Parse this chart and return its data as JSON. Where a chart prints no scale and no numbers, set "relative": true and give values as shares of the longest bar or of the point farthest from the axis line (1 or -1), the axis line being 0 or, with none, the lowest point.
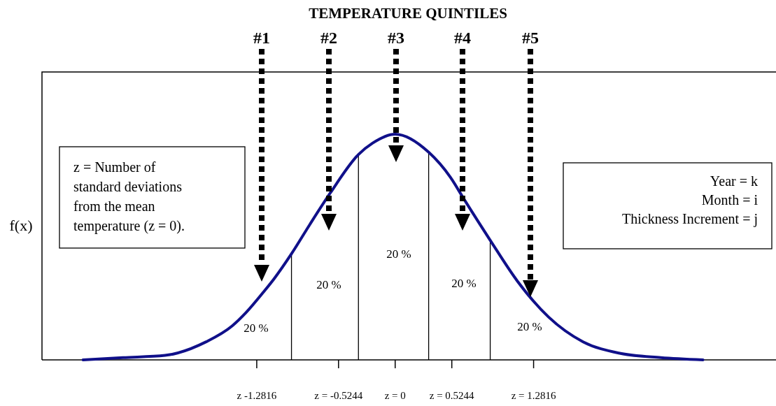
{
  "chart_data": {
    "type": "line",
    "title": "TEMPERATURE QUINTILES",
    "ylabel": "f(x)",
    "relative": true,
    "grid": false,
    "marker": "none",
    "line_style": "solid",
    "xlim": [
      -3.27,
      3.5
    ],
    "xticks": [
      {
        "value": -1.2816,
        "label": "z -1.2816"
      },
      {
        "value": -0.5244,
        "label": "z = -0.5244"
      },
      {
        "value": 0,
        "label": "z = 0"
      },
      {
        "value": 0.5244,
        "label": "z = 0.5244"
      },
      {
        "value": 1.2816,
        "label": "z = 1.2816"
      }
    ],
    "series": [
      {
        "color": "#10108a",
        "x": [
          -2.89,
          -2.52,
          -2.13,
          -1.75,
          -1.51,
          -1.38,
          -1.22,
          -1.12,
          -0.96,
          -0.79,
          -0.6,
          -0.34,
          -0.21,
          0,
          0.31,
          0.51,
          0.64,
          0.88,
          1.13,
          1.42,
          1.74,
          2.07,
          2.46,
          2.85
        ],
        "values": [
          0,
          0.01,
          0.02,
          0.08,
          0.15,
          0.21,
          0.3,
          0.36,
          0.47,
          0.6,
          0.74,
          0.91,
          0.96,
          1,
          0.92,
          0.81,
          0.71,
          0.53,
          0.35,
          0.19,
          0.08,
          0.03,
          0.01,
          0
        ]
      }
    ],
    "ref_lines": [
      {
        "axis": "x",
        "value": -0.96,
        "color": "#000000"
      },
      {
        "axis": "x",
        "value": -0.34,
        "color": "#000000"
      },
      {
        "axis": "x",
        "value": 0.31,
        "color": "#000000"
      },
      {
        "axis": "x",
        "value": 0.88,
        "color": "#000000"
      }
    ],
    "annotations": [
      "#1",
      "#2",
      "#3",
      "#4",
      "#5",
      "20 %",
      "20 %",
      "20 %",
      "20 %",
      "20 %",
      "z = Number of\nstandard deviations\nfrom the mean\ntemperature (z = 0).",
      "Year = k\nMonth = i\nThickness Increment = j"
    ]
  }
}
